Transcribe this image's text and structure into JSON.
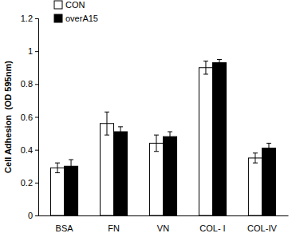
{
  "chart_data": {
    "type": "bar",
    "y_label": "Cell Adhesion  (OD 595nm)",
    "categories": [
      "BSA",
      "FN",
      "VN",
      "COL- I",
      "COL-IV"
    ],
    "series": [
      {
        "name": "CON",
        "color": "#ffffff",
        "values": [
          0.29,
          0.56,
          0.44,
          0.9,
          0.35
        ],
        "errors": [
          0.03,
          0.07,
          0.05,
          0.04,
          0.03
        ]
      },
      {
        "name": "overA15",
        "color": "#000000",
        "values": [
          0.3,
          0.51,
          0.48,
          0.93,
          0.41
        ],
        "errors": [
          0.04,
          0.03,
          0.03,
          0.02,
          0.03
        ]
      }
    ],
    "ylim": [
      0,
      1.2
    ],
    "yticks": [
      0,
      0.2,
      0.4,
      0.6,
      0.8,
      1,
      1.2
    ],
    "grid": false,
    "legend": "top-left"
  }
}
